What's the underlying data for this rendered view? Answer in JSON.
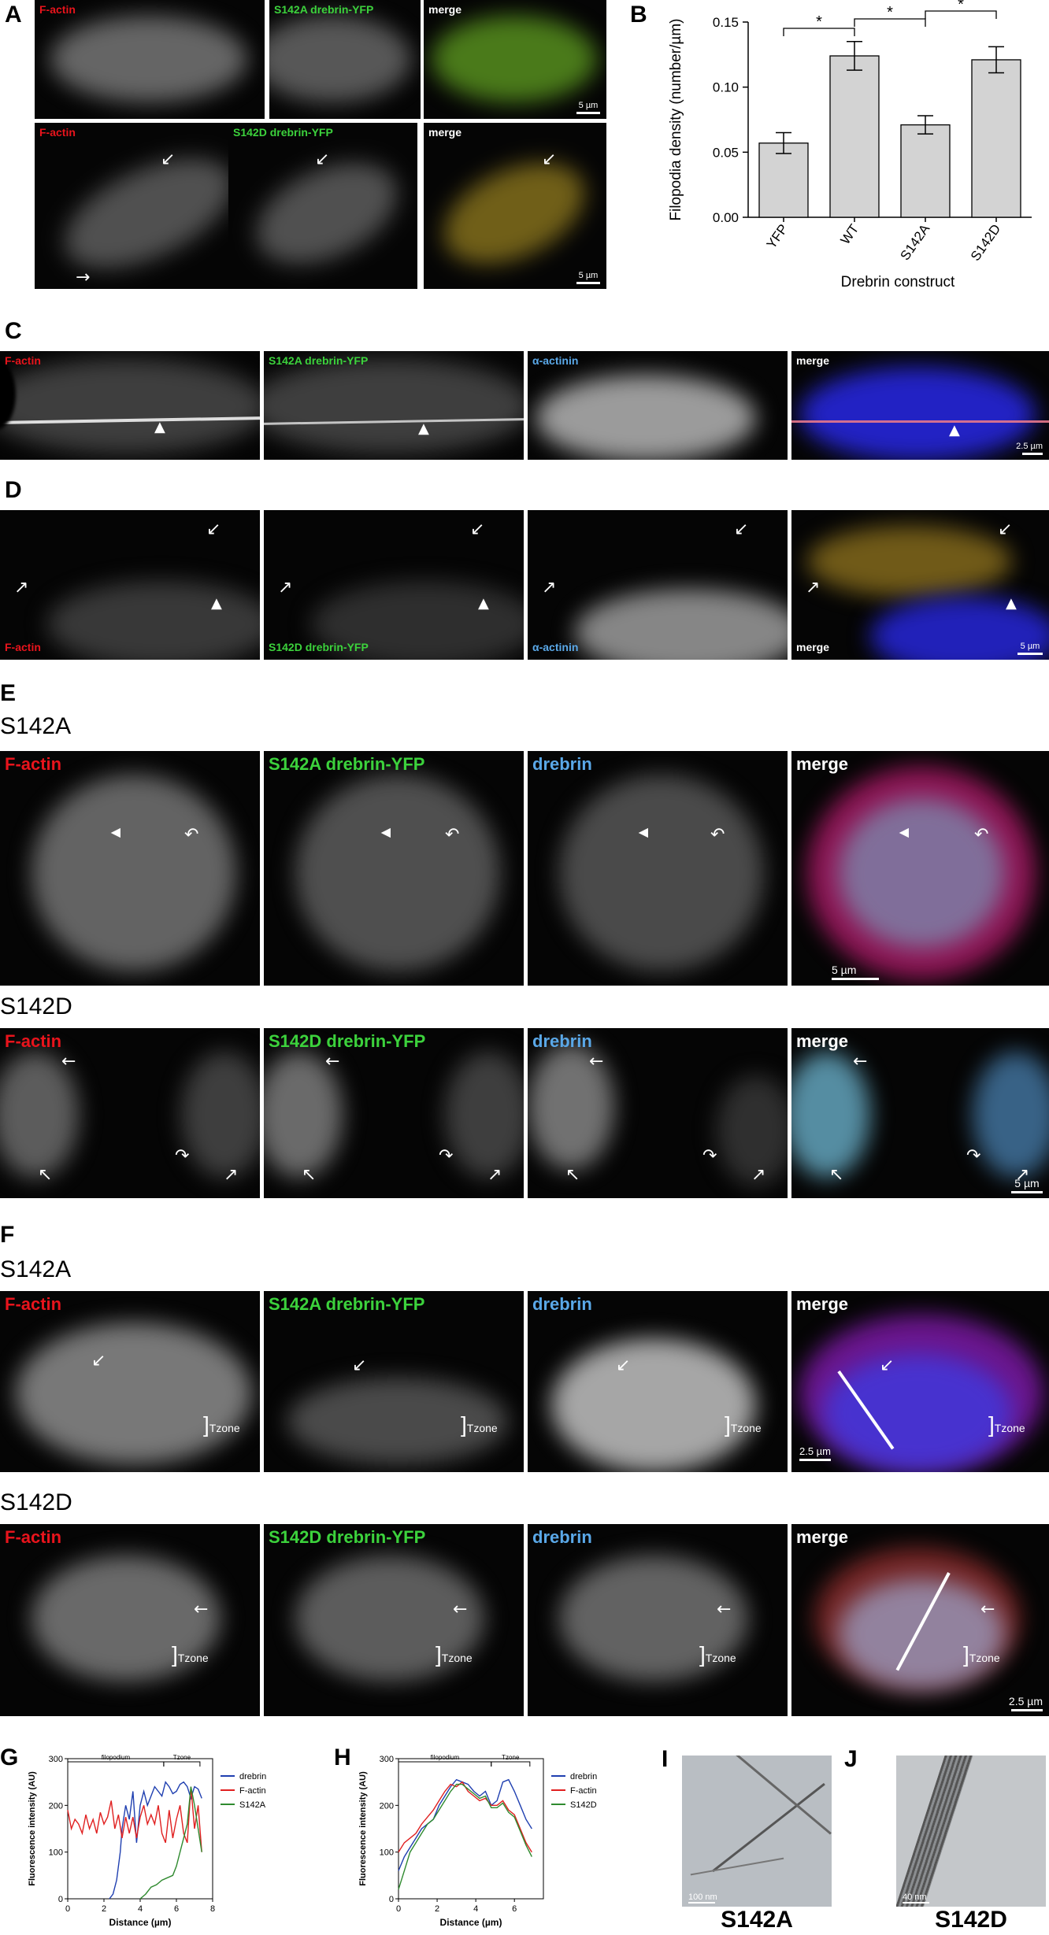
{
  "panels": {
    "A": {
      "letter": "A",
      "row1": [
        "F-actin",
        "S142A drebrin-YFP",
        "merge"
      ],
      "row2": [
        "F-actin",
        "S142D drebrin-YFP",
        "merge"
      ],
      "scale": "5 µm"
    },
    "B": {
      "letter": "B"
    },
    "C": {
      "letter": "C",
      "labels": [
        "F-actin",
        "S142A drebrin-YFP",
        "α-actinin",
        "merge"
      ],
      "scale": "2.5 µm"
    },
    "D": {
      "letter": "D",
      "labels": [
        "F-actin",
        "S142D drebrin-YFP",
        "α-actinin",
        "merge"
      ],
      "scale": "5 µm"
    },
    "E": {
      "letter": "E",
      "title1": "S142A",
      "row1": [
        "F-actin",
        "S142A drebrin-YFP",
        "drebrin",
        "merge"
      ],
      "title2": "S142D",
      "row2": [
        "F-actin",
        "S142D drebrin-YFP",
        "drebrin",
        "merge"
      ],
      "scale": "5 µm"
    },
    "F": {
      "letter": "F",
      "title1": "S142A",
      "row1": [
        "F-actin",
        "S142A drebrin-YFP",
        "drebrin",
        "merge"
      ],
      "title2": "S142D",
      "row2": [
        "F-actin",
        "S142D drebrin-YFP",
        "drebrin",
        "merge"
      ],
      "tzone": "Tzone",
      "scale": "2.5 µm"
    },
    "G": {
      "letter": "G"
    },
    "H": {
      "letter": "H"
    },
    "I": {
      "letter": "I",
      "caption": "S142A",
      "scale": "100 nm"
    },
    "J": {
      "letter": "J",
      "caption": "S142D",
      "scale": "40 nm"
    }
  },
  "colors": {
    "factin": "#e8141c",
    "yfp": "#3cd23c",
    "drebrin": "#5aa8e8",
    "alpha_actinin": "#5aa8e8",
    "merge": "#ffffff",
    "bar_fill": "#d3d3d3"
  },
  "chart_data": [
    {
      "id": "B",
      "type": "bar",
      "categories": [
        "YFP",
        "WT",
        "S142A",
        "S142D"
      ],
      "values": [
        0.057,
        0.124,
        0.071,
        0.121
      ],
      "errors": [
        0.008,
        0.011,
        0.007,
        0.01
      ],
      "ylabel": "Filopodia density (number/µm)",
      "xlabel": "Drebrin construct",
      "ylim": [
        0,
        0.15
      ],
      "yticks": [
        0.0,
        0.05,
        0.1,
        0.15
      ],
      "ytick_labels": [
        "0.00",
        "0.05",
        "0.10",
        "0.15"
      ],
      "significance": [
        {
          "from": "YFP",
          "to": "WT",
          "label": "*"
        },
        {
          "from": "WT",
          "to": "S142A",
          "label": "*"
        },
        {
          "from": "S142A",
          "to": "S142D",
          "label": "*"
        }
      ],
      "grid": false
    },
    {
      "id": "G",
      "type": "line",
      "xlabel": "Distance (µm)",
      "ylabel": "Fluorescence intensity (AU)",
      "xlim": [
        0,
        8
      ],
      "ylim": [
        0,
        300
      ],
      "xticks": [
        0,
        2,
        4,
        6,
        8
      ],
      "yticks": [
        0,
        100,
        200,
        300
      ],
      "regions": [
        {
          "label": "filopodium",
          "x0": 0,
          "x1": 5.3
        },
        {
          "label": "Tzone",
          "x0": 5.3,
          "x1": 7.3
        }
      ],
      "legend": "top-right",
      "series": [
        {
          "name": "drebrin",
          "color": "#1f3fb0",
          "x": [
            2.3,
            2.5,
            2.7,
            2.9,
            3.0,
            3.2,
            3.4,
            3.6,
            3.8,
            4.0,
            4.2,
            4.4,
            4.6,
            4.8,
            5.0,
            5.2,
            5.4,
            5.6,
            5.8,
            6.0,
            6.2,
            6.4,
            6.6,
            6.8,
            7.0,
            7.2,
            7.4
          ],
          "y": [
            0,
            10,
            40,
            100,
            150,
            200,
            170,
            230,
            120,
            200,
            230,
            200,
            220,
            240,
            230,
            220,
            250,
            240,
            225,
            230,
            245,
            250,
            240,
            215,
            240,
            235,
            215
          ]
        },
        {
          "name": "F-actin",
          "color": "#e02020",
          "x": [
            0,
            0.2,
            0.4,
            0.6,
            0.8,
            1.0,
            1.2,
            1.4,
            1.6,
            1.8,
            2.0,
            2.2,
            2.4,
            2.6,
            2.8,
            3.0,
            3.2,
            3.4,
            3.6,
            3.8,
            4.0,
            4.2,
            4.4,
            4.6,
            4.8,
            5.0,
            5.2,
            5.4,
            5.6,
            5.8,
            6.0,
            6.2,
            6.4,
            6.6,
            6.8,
            7.0,
            7.2,
            7.4
          ],
          "y": [
            190,
            150,
            170,
            160,
            140,
            180,
            150,
            170,
            140,
            185,
            160,
            175,
            210,
            150,
            180,
            130,
            175,
            140,
            175,
            130,
            175,
            200,
            160,
            180,
            160,
            200,
            140,
            120,
            190,
            130,
            170,
            200,
            140,
            120,
            240,
            150,
            200,
            100
          ]
        },
        {
          "name": "S142A",
          "color": "#2f8a2f",
          "x": [
            4.0,
            4.3,
            4.6,
            4.9,
            5.2,
            5.5,
            5.8,
            6.0,
            6.2,
            6.4,
            6.6,
            6.8,
            7.0,
            7.2,
            7.4
          ],
          "y": [
            0,
            10,
            25,
            30,
            40,
            45,
            50,
            70,
            100,
            130,
            160,
            240,
            200,
            150,
            100
          ]
        }
      ]
    },
    {
      "id": "H",
      "type": "line",
      "xlabel": "Distance (µm)",
      "ylabel": "Fluorescence intensity (AU)",
      "xlim": [
        0,
        7.5
      ],
      "ylim": [
        0,
        300
      ],
      "xticks": [
        0,
        2,
        4,
        6
      ],
      "yticks": [
        0,
        100,
        200,
        300
      ],
      "regions": [
        {
          "label": "filopodium",
          "x0": 0,
          "x1": 4.8
        },
        {
          "label": "Tzone",
          "x0": 4.8,
          "x1": 6.8
        }
      ],
      "legend": "top-right",
      "series": [
        {
          "name": "drebrin",
          "color": "#1f3fb0",
          "x": [
            0,
            0.3,
            0.6,
            0.9,
            1.2,
            1.5,
            1.8,
            2.1,
            2.4,
            2.7,
            3.0,
            3.3,
            3.6,
            3.9,
            4.2,
            4.5,
            4.8,
            5.1,
            5.4,
            5.7,
            6.0,
            6.3,
            6.6,
            6.9
          ],
          "y": [
            60,
            90,
            110,
            130,
            150,
            160,
            170,
            200,
            220,
            240,
            255,
            250,
            245,
            230,
            220,
            230,
            200,
            210,
            250,
            255,
            230,
            200,
            170,
            150
          ]
        },
        {
          "name": "F-actin",
          "color": "#e02020",
          "x": [
            0,
            0.3,
            0.6,
            0.9,
            1.2,
            1.5,
            1.8,
            2.1,
            2.4,
            2.7,
            3.0,
            3.3,
            3.6,
            3.9,
            4.2,
            4.5,
            4.8,
            5.1,
            5.4,
            5.7,
            6.0,
            6.3,
            6.6,
            6.9
          ],
          "y": [
            100,
            120,
            130,
            140,
            160,
            175,
            190,
            210,
            230,
            245,
            240,
            250,
            230,
            220,
            210,
            215,
            200,
            200,
            210,
            190,
            180,
            150,
            120,
            100
          ]
        },
        {
          "name": "S142D",
          "color": "#2f8a2f",
          "x": [
            0,
            0.3,
            0.6,
            0.9,
            1.2,
            1.5,
            1.8,
            2.1,
            2.4,
            2.7,
            3.0,
            3.3,
            3.6,
            3.9,
            4.2,
            4.5,
            4.8,
            5.1,
            5.4,
            5.7,
            6.0,
            6.3,
            6.6,
            6.9
          ],
          "y": [
            20,
            60,
            100,
            120,
            140,
            160,
            170,
            190,
            210,
            230,
            245,
            245,
            235,
            225,
            215,
            220,
            195,
            195,
            205,
            185,
            175,
            145,
            115,
            90
          ]
        }
      ]
    }
  ]
}
